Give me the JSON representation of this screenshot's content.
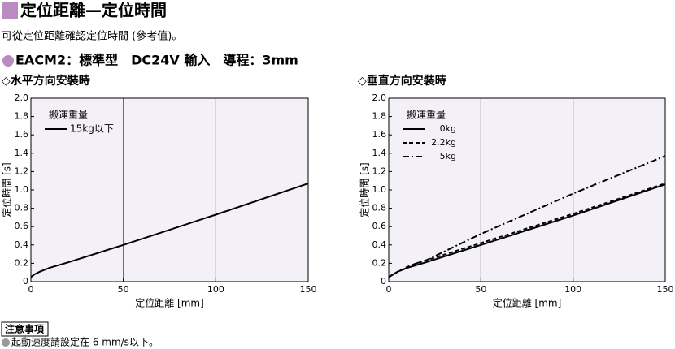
{
  "title": "定位距離—定位時間",
  "subtitle": "可從定位距離確認定位時間 (參考值)。",
  "model": "EACM2：標準型　DC24V 輸入　導程：3mm",
  "note": {
    "heading": "注意事項",
    "text": "起動速度請設定在 6 mm/s以下。"
  },
  "chart_data": [
    {
      "type": "line",
      "title": "◇水平方向安裝時",
      "x_label": "定位距離 [mm]",
      "y_label": "定位時間 [s]",
      "xlim": [
        0,
        150
      ],
      "xticks": [
        0,
        50,
        100,
        150
      ],
      "ylim": [
        0,
        2.0
      ],
      "yticks": [
        0,
        0.2,
        0.4,
        0.6,
        0.8,
        {
          "value": 1.0,
          "label": "1.0"
        },
        1.2,
        1.4,
        1.6,
        1.8,
        {
          "value": 2.0,
          "label": "2.0"
        }
      ],
      "grid": "x",
      "legend_title": "搬運重量",
      "x": [
        0,
        2,
        5,
        10,
        20,
        50,
        100,
        150
      ],
      "series": [
        {
          "name": "15kg以下",
          "color": "#000000",
          "dash": "solid",
          "values": [
            0.05,
            0.08,
            0.11,
            0.15,
            0.21,
            0.4,
            0.73,
            1.07
          ]
        }
      ]
    },
    {
      "type": "line",
      "title": "◇垂直方向安裝時",
      "x_label": "定位距離 [mm]",
      "y_label": "定位時間 [s]",
      "xlim": [
        0,
        150
      ],
      "xticks": [
        0,
        50,
        100,
        150
      ],
      "ylim": [
        0,
        2.0
      ],
      "yticks": [
        0,
        0.2,
        0.4,
        0.6,
        0.8,
        {
          "value": 1.0,
          "label": "1.0"
        },
        1.2,
        1.4,
        1.6,
        1.8,
        {
          "value": 2.0,
          "label": "2.0"
        }
      ],
      "grid": "x",
      "legend_title": "搬運重量",
      "x": [
        0,
        5,
        10,
        15,
        20,
        50,
        100,
        150
      ],
      "series": [
        {
          "name": "0kg",
          "color": "#000000",
          "dash": "solid",
          "values": [
            0.05,
            0.11,
            0.15,
            0.18,
            0.21,
            0.4,
            0.72,
            1.06
          ]
        },
        {
          "name": "2.2kg",
          "color": "#000000",
          "dash": "dashed",
          "values": [
            0.05,
            0.11,
            0.16,
            0.2,
            0.23,
            0.42,
            0.74,
            1.07
          ]
        },
        {
          "name": "5kg",
          "color": "#000000",
          "dash": "dashdot",
          "values": [
            0.05,
            0.11,
            0.15,
            0.2,
            0.23,
            0.52,
            0.96,
            1.37
          ]
        }
      ]
    }
  ]
}
